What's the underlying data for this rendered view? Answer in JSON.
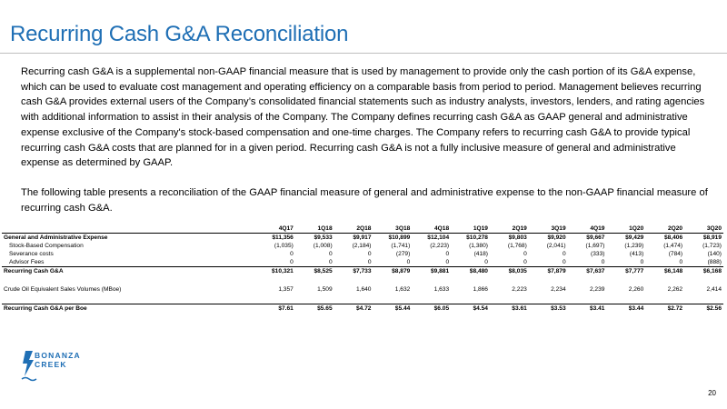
{
  "title": "Recurring Cash G&A Reconciliation",
  "paragraphs": [
    "Recurring cash G&A is a supplemental non-GAAP financial measure that is used by management to provide only the cash portion of its G&A expense, which can be used to evaluate cost management and operating efficiency on a comparable basis from period to period. Management believes recurring cash G&A provides external users of the Company’s consolidated financial statements such as industry analysts, investors, lenders, and rating agencies with additional information to assist in their analysis of the Company. The Company defines recurring cash G&A as GAAP general and administrative expense exclusive of the Company's stock-based compensation and one-time charges. The Company refers to recurring cash G&A to provide typical recurring cash G&A costs that are planned for in a given period. Recurring cash G&A is not a fully inclusive measure of general and administrative expense as determined by GAAP.",
    "The following table presents a reconciliation of the GAAP financial measure of general and administrative expense to the non-GAAP financial measure of recurring cash G&A."
  ],
  "table": {
    "columns": [
      "4Q17",
      "1Q18",
      "2Q18",
      "3Q18",
      "4Q18",
      "1Q19",
      "2Q19",
      "3Q19",
      "4Q19",
      "1Q20",
      "2Q20",
      "3Q20"
    ],
    "rows": [
      {
        "label": "General and Administrative Expense",
        "values": [
          "$11,356",
          "$9,533",
          "$9,917",
          "$10,899",
          "$12,104",
          "$10,278",
          "$9,803",
          "$9,920",
          "$9,667",
          "$9,429",
          "$8,406",
          "$8,919"
        ]
      },
      {
        "label": "Stock-Based Compensation",
        "values": [
          "(1,035)",
          "(1,008)",
          "(2,184)",
          "(1,741)",
          "(2,223)",
          "(1,380)",
          "(1,768)",
          "(2,041)",
          "(1,697)",
          "(1,239)",
          "(1,474)",
          "(1,723)"
        ]
      },
      {
        "label": "Severance costs",
        "values": [
          "0",
          "0",
          "0",
          "(279)",
          "0",
          "(418)",
          "0",
          "0",
          "(333)",
          "(413)",
          "(784)",
          "(140)"
        ]
      },
      {
        "label": "Advisor Fees",
        "values": [
          "0",
          "0",
          "0",
          "0",
          "0",
          "0",
          "0",
          "0",
          "0",
          "0",
          "0",
          "(888)"
        ]
      },
      {
        "label": "Recurring Cash G&A",
        "values": [
          "$10,321",
          "$8,525",
          "$7,733",
          "$8,879",
          "$9,881",
          "$8,480",
          "$8,035",
          "$7,879",
          "$7,637",
          "$7,777",
          "$6,148",
          "$6,168"
        ]
      },
      {
        "label": "Crude Oil Equivalent Sales Volumes (MBoe)",
        "values": [
          "1,357",
          "1,509",
          "1,640",
          "1,632",
          "1,633",
          "1,866",
          "2,223",
          "2,234",
          "2,239",
          "2,260",
          "2,262",
          "2,414"
        ]
      },
      {
        "label": "Recurring Cash G&A per Boe",
        "values": [
          "$7.61",
          "$5.65",
          "$4.72",
          "$5.44",
          "$6.05",
          "$4.54",
          "$3.61",
          "$3.53",
          "$3.41",
          "$3.44",
          "$2.72",
          "$2.56"
        ]
      }
    ]
  },
  "logo": {
    "line1": "BONANZA",
    "line2": "CREEK",
    "color": "#1f6fb5"
  },
  "page_number": "20",
  "colors": {
    "title": "#1f6fb5"
  }
}
